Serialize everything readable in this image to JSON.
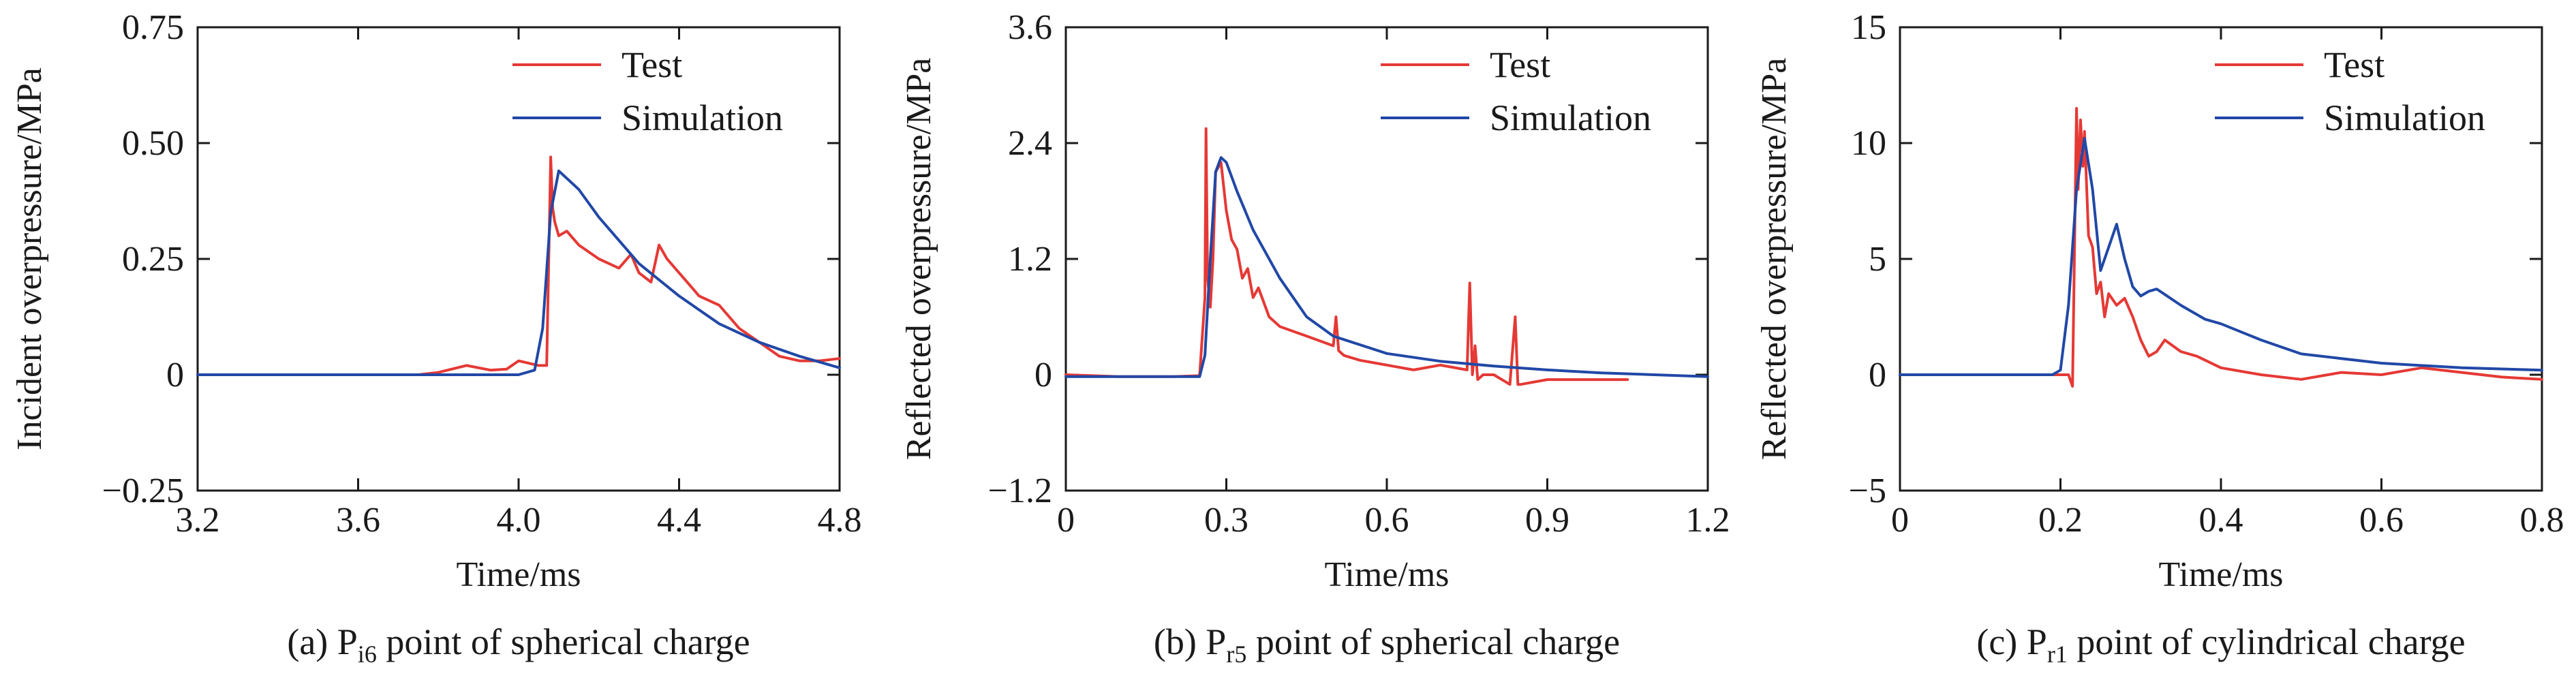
{
  "colors": {
    "test": "#e53935",
    "simulation": "#2148a6",
    "axis": "#1a1a1a"
  },
  "legend_labels": [
    "Test",
    "Simulation"
  ],
  "chart_data": [
    {
      "type": "line",
      "caption": "(a) P",
      "caption_sub": "i6",
      "caption_rest": " point of spherical charge",
      "xlabel": "Time/ms",
      "ylabel": "Incident overpressure/MPa",
      "xlim": [
        3.2,
        4.8
      ],
      "ylim": [
        -0.25,
        0.75
      ],
      "xticks": [
        "3.2",
        "3.6",
        "4.0",
        "4.4",
        "4.8"
      ],
      "yticks": [
        "−0.25",
        "0",
        "0.25",
        "0.50",
        "0.75"
      ],
      "legend_position": "top-right",
      "grid": false,
      "series": [
        {
          "name": "Test",
          "x": [
            3.2,
            3.75,
            3.8,
            3.87,
            3.93,
            3.97,
            4.0,
            4.05,
            4.07,
            4.08,
            4.085,
            4.09,
            4.1,
            4.12,
            4.15,
            4.2,
            4.25,
            4.28,
            4.3,
            4.33,
            4.35,
            4.37,
            4.4,
            4.45,
            4.5,
            4.55,
            4.6,
            4.65,
            4.7,
            4.75,
            4.8
          ],
          "y": [
            0,
            0,
            0.005,
            0.02,
            0.01,
            0.012,
            0.03,
            0.02,
            0.02,
            0.47,
            0.36,
            0.33,
            0.3,
            0.31,
            0.28,
            0.25,
            0.23,
            0.26,
            0.22,
            0.2,
            0.28,
            0.25,
            0.22,
            0.17,
            0.15,
            0.1,
            0.07,
            0.04,
            0.03,
            0.03,
            0.035
          ]
        },
        {
          "name": "Simulation",
          "x": [
            3.2,
            4.0,
            4.04,
            4.06,
            4.08,
            4.1,
            4.15,
            4.2,
            4.3,
            4.4,
            4.5,
            4.6,
            4.7,
            4.8
          ],
          "y": [
            0,
            0,
            0.01,
            0.1,
            0.35,
            0.44,
            0.4,
            0.34,
            0.24,
            0.17,
            0.11,
            0.07,
            0.04,
            0.015
          ]
        }
      ]
    },
    {
      "type": "line",
      "caption": "(b) P",
      "caption_sub": "r5",
      "caption_rest": " point of spherical charge",
      "xlabel": "Time/ms",
      "ylabel": "Reflected overpressure/MPa",
      "xlim": [
        0,
        1.2
      ],
      "ylim": [
        -1.2,
        3.6
      ],
      "xticks": [
        "0",
        "0.3",
        "0.6",
        "0.9",
        "1.2"
      ],
      "yticks": [
        "−1.2",
        "0",
        "1.2",
        "2.4",
        "3.6"
      ],
      "legend_position": "top-right",
      "grid": false,
      "series": [
        {
          "name": "Test",
          "x": [
            0,
            0.1,
            0.2,
            0.25,
            0.26,
            0.262,
            0.265,
            0.27,
            0.275,
            0.28,
            0.29,
            0.3,
            0.31,
            0.32,
            0.33,
            0.34,
            0.35,
            0.36,
            0.38,
            0.4,
            0.45,
            0.5,
            0.505,
            0.51,
            0.52,
            0.55,
            0.6,
            0.65,
            0.7,
            0.75,
            0.755,
            0.76,
            0.765,
            0.77,
            0.78,
            0.8,
            0.83,
            0.84,
            0.845,
            0.85,
            0.9,
            1.0,
            1.05
          ],
          "y": [
            0,
            -0.02,
            -0.02,
            -0.01,
            0.8,
            2.55,
            1.0,
            0.7,
            1.2,
            2.1,
            2.2,
            1.7,
            1.4,
            1.3,
            1.0,
            1.1,
            0.8,
            0.9,
            0.6,
            0.5,
            0.4,
            0.3,
            0.6,
            0.25,
            0.2,
            0.15,
            0.1,
            0.05,
            0.1,
            0.05,
            0.95,
            0.0,
            0.3,
            -0.05,
            0.0,
            0.0,
            -0.1,
            0.6,
            -0.1,
            -0.1,
            -0.05,
            -0.05,
            -0.05
          ]
        },
        {
          "name": "Simulation",
          "x": [
            0,
            0.25,
            0.26,
            0.27,
            0.28,
            0.29,
            0.3,
            0.32,
            0.35,
            0.4,
            0.45,
            0.5,
            0.6,
            0.7,
            0.8,
            0.9,
            1.0,
            1.2
          ],
          "y": [
            -0.02,
            -0.02,
            0.2,
            1.2,
            2.1,
            2.25,
            2.2,
            1.9,
            1.5,
            1.0,
            0.6,
            0.4,
            0.22,
            0.14,
            0.09,
            0.05,
            0.02,
            -0.02
          ]
        }
      ]
    },
    {
      "type": "line",
      "caption": "(c) P",
      "caption_sub": "r1",
      "caption_rest": " point of cylindrical charge",
      "xlabel": "Time/ms",
      "ylabel": "Reflected overpressure/MPa",
      "xlim": [
        0,
        0.8
      ],
      "ylim": [
        -5,
        15
      ],
      "xticks": [
        "0",
        "0.2",
        "0.4",
        "0.6",
        "0.8"
      ],
      "yticks": [
        "−5",
        "0",
        "5",
        "10",
        "15"
      ],
      "legend_position": "top-right",
      "grid": false,
      "series": [
        {
          "name": "Test",
          "x": [
            0,
            0.2,
            0.21,
            0.215,
            0.22,
            0.222,
            0.225,
            0.228,
            0.23,
            0.235,
            0.24,
            0.245,
            0.25,
            0.255,
            0.26,
            0.27,
            0.28,
            0.29,
            0.3,
            0.31,
            0.32,
            0.33,
            0.35,
            0.37,
            0.4,
            0.45,
            0.5,
            0.55,
            0.6,
            0.65,
            0.7,
            0.75,
            0.8
          ],
          "y": [
            0,
            0,
            0,
            -0.5,
            11.5,
            8.0,
            11.0,
            9.0,
            10.5,
            6.0,
            5.5,
            3.5,
            4.0,
            2.5,
            3.5,
            3.0,
            3.3,
            2.5,
            1.5,
            0.8,
            1.0,
            1.5,
            1.0,
            0.8,
            0.3,
            0.0,
            -0.2,
            0.1,
            0.0,
            0.3,
            0.1,
            -0.1,
            -0.2
          ]
        },
        {
          "name": "Simulation",
          "x": [
            0,
            0.19,
            0.2,
            0.21,
            0.22,
            0.23,
            0.24,
            0.25,
            0.26,
            0.27,
            0.28,
            0.29,
            0.3,
            0.31,
            0.32,
            0.35,
            0.38,
            0.4,
            0.45,
            0.5,
            0.6,
            0.7,
            0.8
          ],
          "y": [
            0,
            0,
            0.2,
            3.0,
            8.0,
            10.2,
            8.0,
            4.5,
            5.5,
            6.5,
            5.0,
            3.8,
            3.4,
            3.6,
            3.7,
            3.0,
            2.4,
            2.2,
            1.5,
            0.9,
            0.5,
            0.3,
            0.2
          ]
        }
      ]
    }
  ]
}
